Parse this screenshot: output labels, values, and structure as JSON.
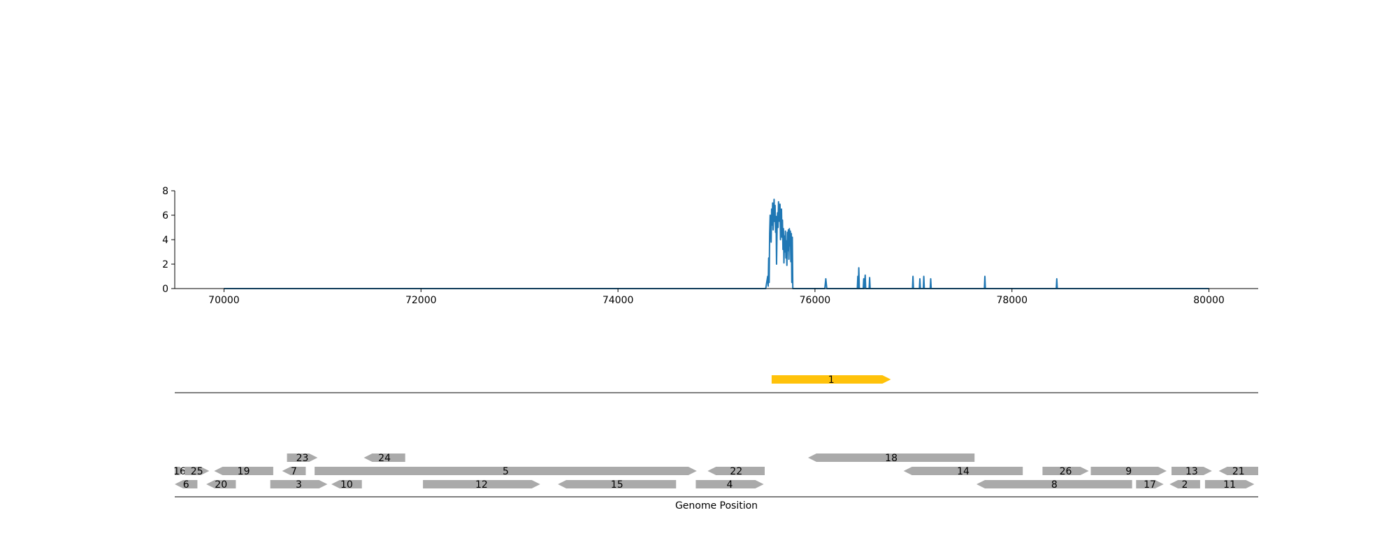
{
  "chart_data": [
    {
      "type": "line",
      "title": "",
      "xlabel": "",
      "ylabel": "",
      "xlim": [
        69500,
        80500
      ],
      "ylim": [
        0,
        8
      ],
      "x_ticks": [
        70000,
        72000,
        74000,
        76000,
        78000,
        80000
      ],
      "y_ticks": [
        0,
        2,
        4,
        6,
        8
      ],
      "color": "#1f77b4",
      "grid": false,
      "series": [
        {
          "points": [
            [
              70000,
              0
            ],
            [
              75500,
              0
            ],
            [
              75520,
              1.0
            ],
            [
              75525,
              0.2
            ],
            [
              75530,
              2.5
            ],
            [
              75535,
              0.5
            ],
            [
              75540,
              4.5
            ],
            [
              75545,
              6.0
            ],
            [
              75550,
              5.0
            ],
            [
              75555,
              3.8
            ],
            [
              75560,
              6.5
            ],
            [
              75565,
              5.2
            ],
            [
              75570,
              7.0
            ],
            [
              75575,
              4.8
            ],
            [
              75580,
              6.0
            ],
            [
              75585,
              7.3
            ],
            [
              75590,
              5.5
            ],
            [
              75595,
              6.8
            ],
            [
              75600,
              4.6
            ],
            [
              75605,
              5.9
            ],
            [
              75610,
              2.0
            ],
            [
              75615,
              4.8
            ],
            [
              75620,
              6.2
            ],
            [
              75625,
              5.0
            ],
            [
              75630,
              7.1
            ],
            [
              75635,
              6.4
            ],
            [
              75640,
              5.5
            ],
            [
              75645,
              6.9
            ],
            [
              75650,
              4.0
            ],
            [
              75655,
              5.8
            ],
            [
              75660,
              6.5
            ],
            [
              75665,
              4.2
            ],
            [
              75670,
              5.6
            ],
            [
              75675,
              3.2
            ],
            [
              75680,
              4.9
            ],
            [
              75685,
              2.1
            ],
            [
              75690,
              4.3
            ],
            [
              75695,
              3.0
            ],
            [
              75700,
              4.7
            ],
            [
              75705,
              2.5
            ],
            [
              75710,
              3.9
            ],
            [
              75715,
              1.9
            ],
            [
              75720,
              4.6
            ],
            [
              75725,
              3.1
            ],
            [
              75730,
              4.8
            ],
            [
              75735,
              2.4
            ],
            [
              75740,
              4.9
            ],
            [
              75745,
              3.5
            ],
            [
              75750,
              4.7
            ],
            [
              75755,
              2.2
            ],
            [
              75760,
              4.5
            ],
            [
              75765,
              0.5
            ],
            [
              75770,
              4.2
            ],
            [
              75775,
              0
            ],
            [
              76000,
              0
            ],
            [
              76100,
              0
            ],
            [
              76110,
              0.8
            ],
            [
              76120,
              0
            ],
            [
              76430,
              0
            ],
            [
              76435,
              1.0
            ],
            [
              76440,
              0
            ],
            [
              76445,
              1.7
            ],
            [
              76450,
              0
            ],
            [
              76490,
              0
            ],
            [
              76495,
              0.8
            ],
            [
              76500,
              0
            ],
            [
              76510,
              1.1
            ],
            [
              76515,
              0
            ],
            [
              76550,
              0
            ],
            [
              76555,
              0.9
            ],
            [
              76560,
              0
            ],
            [
              76990,
              0
            ],
            [
              76995,
              1.0
            ],
            [
              77000,
              0
            ],
            [
              77060,
              0
            ],
            [
              77065,
              0.8
            ],
            [
              77070,
              0
            ],
            [
              77100,
              0
            ],
            [
              77105,
              1.0
            ],
            [
              77110,
              0
            ],
            [
              77170,
              0
            ],
            [
              77175,
              0.8
            ],
            [
              77180,
              0
            ],
            [
              77720,
              0
            ],
            [
              77725,
              1.0
            ],
            [
              77730,
              0
            ],
            [
              78450,
              0
            ],
            [
              78455,
              0.8
            ],
            [
              78460,
              0
            ],
            [
              80000,
              0
            ]
          ]
        }
      ]
    },
    {
      "type": "gene-map",
      "xlabel": "Genome Position",
      "xlim": [
        69500,
        80500
      ],
      "highlight_color": "#ffc20a",
      "gene_color": "#aaaaaa",
      "highlight_genes": [
        {
          "label": "1",
          "start": 75560,
          "end": 76770,
          "strand": 1,
          "row": 0
        }
      ],
      "genes": [
        {
          "label": "16",
          "start": 69500,
          "end": 69600,
          "strand": 1,
          "row": 1
        },
        {
          "label": "25",
          "start": 69600,
          "end": 69850,
          "strand": 1,
          "row": 1
        },
        {
          "label": "6",
          "start": 69500,
          "end": 69730,
          "strand": -1,
          "row": 0
        },
        {
          "label": "20",
          "start": 69820,
          "end": 70120,
          "strand": -1,
          "row": 0
        },
        {
          "label": "23",
          "start": 70640,
          "end": 70950,
          "strand": 1,
          "row": 2
        },
        {
          "label": "19",
          "start": 69900,
          "end": 70500,
          "strand": -1,
          "row": 1
        },
        {
          "label": "3",
          "start": 70470,
          "end": 71050,
          "strand": 1,
          "row": 0
        },
        {
          "label": "7",
          "start": 70590,
          "end": 70830,
          "strand": -1,
          "row": 1
        },
        {
          "label": "10",
          "start": 71090,
          "end": 71400,
          "strand": -1,
          "row": 0
        },
        {
          "label": "5",
          "start": 70920,
          "end": 74800,
          "strand": 1,
          "row": 1
        },
        {
          "label": "24",
          "start": 71420,
          "end": 71840,
          "strand": -1,
          "row": 2
        },
        {
          "label": "12",
          "start": 72020,
          "end": 73210,
          "strand": 1,
          "row": 0
        },
        {
          "label": "15",
          "start": 73390,
          "end": 74590,
          "strand": -1,
          "row": 0
        },
        {
          "label": "4",
          "start": 74790,
          "end": 75480,
          "strand": 1,
          "row": 0
        },
        {
          "label": "22",
          "start": 74910,
          "end": 75490,
          "strand": -1,
          "row": 1
        },
        {
          "label": "18",
          "start": 75930,
          "end": 77620,
          "strand": -1,
          "row": 2
        },
        {
          "label": "14",
          "start": 76900,
          "end": 78110,
          "strand": -1,
          "row": 1
        },
        {
          "label": "8",
          "start": 77640,
          "end": 79220,
          "strand": -1,
          "row": 0
        },
        {
          "label": "26",
          "start": 78310,
          "end": 78780,
          "strand": 1,
          "row": 1
        },
        {
          "label": "9",
          "start": 78800,
          "end": 79570,
          "strand": 1,
          "row": 1
        },
        {
          "label": "17",
          "start": 79260,
          "end": 79540,
          "strand": 1,
          "row": 0
        },
        {
          "label": "13",
          "start": 79620,
          "end": 80030,
          "strand": 1,
          "row": 1
        },
        {
          "label": "2",
          "start": 79600,
          "end": 79910,
          "strand": -1,
          "row": 0
        },
        {
          "label": "21",
          "start": 80100,
          "end": 80500,
          "strand": -1,
          "row": 1
        },
        {
          "label": "11",
          "start": 79960,
          "end": 80460,
          "strand": 1,
          "row": 0
        }
      ]
    }
  ]
}
